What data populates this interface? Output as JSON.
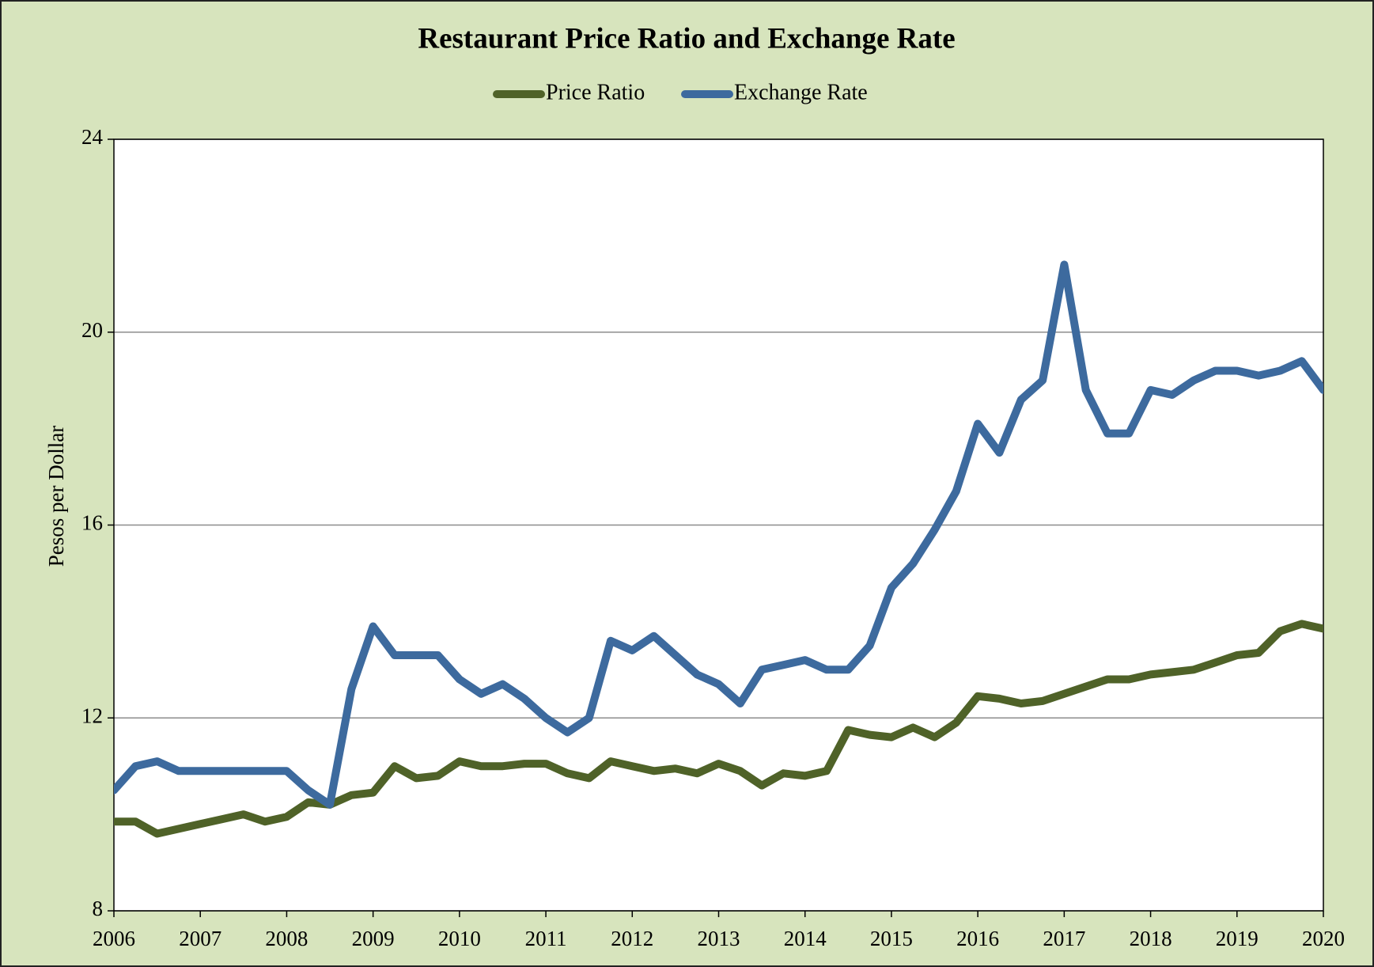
{
  "chart_data": {
    "type": "line",
    "title": "Restaurant Price Ratio and Exchange Rate",
    "ylabel": "Pesos per Dollar",
    "legend": "top",
    "grid": true,
    "x": [
      2006,
      2006.25,
      2006.5,
      2006.75,
      2007,
      2007.25,
      2007.5,
      2007.75,
      2008,
      2008.25,
      2008.5,
      2008.75,
      2009,
      2009.25,
      2009.5,
      2009.75,
      2010,
      2010.25,
      2010.5,
      2010.75,
      2011,
      2011.25,
      2011.5,
      2011.75,
      2012,
      2012.25,
      2012.5,
      2012.75,
      2013,
      2013.25,
      2013.5,
      2013.75,
      2014,
      2014.25,
      2014.5,
      2014.75,
      2015,
      2015.25,
      2015.5,
      2015.75,
      2016,
      2016.25,
      2016.5,
      2016.75,
      2017,
      2017.25,
      2017.5,
      2017.75,
      2018,
      2018.25,
      2018.5,
      2018.75,
      2019,
      2019.25,
      2019.5,
      2019.75,
      2020
    ],
    "series": [
      {
        "name": "Price Ratio",
        "color": "#4f6228",
        "values": [
          9.85,
          9.85,
          9.6,
          9.7,
          9.8,
          9.9,
          10.0,
          9.85,
          9.95,
          10.25,
          10.2,
          10.4,
          10.45,
          11.0,
          10.75,
          10.8,
          11.1,
          11.0,
          11.0,
          11.05,
          11.05,
          10.85,
          10.75,
          11.1,
          11.0,
          10.9,
          10.95,
          10.85,
          11.05,
          10.9,
          10.6,
          10.85,
          10.8,
          10.9,
          11.75,
          11.65,
          11.6,
          11.8,
          11.6,
          11.9,
          12.45,
          12.4,
          12.3,
          12.35,
          12.5,
          12.65,
          12.8,
          12.8,
          12.9,
          12.95,
          13.0,
          13.15,
          13.3,
          13.35,
          13.8,
          13.95,
          13.85
        ]
      },
      {
        "name": "Exchange Rate",
        "color": "#3d6a9e",
        "values": [
          10.5,
          11.0,
          11.1,
          10.9,
          10.9,
          10.9,
          10.9,
          10.9,
          10.9,
          10.5,
          10.2,
          12.6,
          13.9,
          13.3,
          13.3,
          13.3,
          12.8,
          12.5,
          12.7,
          12.4,
          12.0,
          11.7,
          12.0,
          13.6,
          13.4,
          13.7,
          13.3,
          12.9,
          12.7,
          12.3,
          13.0,
          13.1,
          13.2,
          13.0,
          13.0,
          13.5,
          14.7,
          15.2,
          15.9,
          16.7,
          18.1,
          17.5,
          18.6,
          19.0,
          21.4,
          18.8,
          17.9,
          17.9,
          18.8,
          18.7,
          19.0,
          19.2,
          19.2,
          19.1,
          19.2,
          19.4,
          18.8
        ]
      }
    ],
    "xlim": [
      2006,
      2020
    ],
    "xticks": [
      2006,
      2007,
      2008,
      2009,
      2010,
      2011,
      2012,
      2013,
      2014,
      2015,
      2016,
      2017,
      2018,
      2019,
      2020
    ],
    "ylim": [
      8,
      24
    ],
    "yticks": [
      8,
      12,
      16,
      20,
      24
    ]
  }
}
